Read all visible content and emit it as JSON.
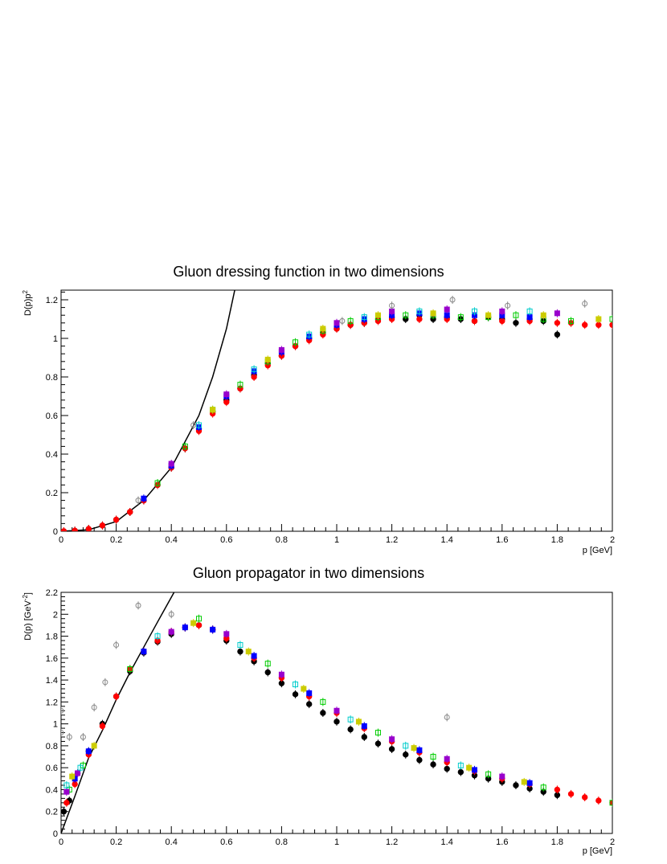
{
  "chart_data": [
    {
      "type": "scatter",
      "title": "Gluon dressing function in two dimensions",
      "xlabel": "p [GeV]",
      "ylabel_main": "D(p)p",
      "ylabel_sup": "2",
      "xlim": [
        0,
        2
      ],
      "ylim": [
        0,
        1.25
      ],
      "xticks": [
        {
          "v": 0,
          "t": "0"
        },
        {
          "v": 0.2,
          "t": "0.2"
        },
        {
          "v": 0.4,
          "t": "0.4"
        },
        {
          "v": 0.6,
          "t": "0.6"
        },
        {
          "v": 0.8,
          "t": "0.8"
        },
        {
          "v": 1,
          "t": "1"
        },
        {
          "v": 1.2,
          "t": "1.2"
        },
        {
          "v": 1.4,
          "t": "1.4"
        },
        {
          "v": 1.6,
          "t": "1.6"
        },
        {
          "v": 1.8,
          "t": "1.8"
        },
        {
          "v": 2,
          "t": "2"
        }
      ],
      "yticks": [
        {
          "v": 0,
          "t": "0"
        },
        {
          "v": 0.2,
          "t": "0.2"
        },
        {
          "v": 0.4,
          "t": "0.4"
        },
        {
          "v": 0.6,
          "t": "0.6"
        },
        {
          "v": 0.8,
          "t": "0.8"
        },
        {
          "v": 1,
          "t": "1"
        },
        {
          "v": 1.2,
          "t": "1.2"
        }
      ],
      "grid": false,
      "legend": "none",
      "curve": {
        "x": [
          0,
          0.1,
          0.2,
          0.3,
          0.4,
          0.5,
          0.55,
          0.6,
          0.63
        ],
        "y": [
          0,
          0.008,
          0.05,
          0.16,
          0.33,
          0.6,
          0.8,
          1.05,
          1.25
        ]
      },
      "series": [
        {
          "color": "#000000",
          "x": [
            0.01,
            0.05,
            0.1,
            0.15,
            0.2,
            0.25,
            0.3,
            0.35,
            0.4,
            0.45,
            0.5,
            0.55,
            0.6,
            0.65,
            0.7,
            0.75,
            0.8,
            0.85,
            0.9,
            0.95,
            1.0,
            1.05,
            1.1,
            1.15,
            1.2,
            1.25,
            1.3,
            1.35,
            1.4,
            1.45,
            1.5,
            1.55,
            1.6,
            1.65,
            1.7,
            1.75,
            1.8
          ],
          "y": [
            0.0,
            0.003,
            0.012,
            0.03,
            0.06,
            0.1,
            0.16,
            0.24,
            0.33,
            0.43,
            0.53,
            0.62,
            0.68,
            0.74,
            0.81,
            0.87,
            0.91,
            0.96,
            1.0,
            1.03,
            1.05,
            1.07,
            1.08,
            1.1,
            1.11,
            1.1,
            1.12,
            1.1,
            1.11,
            1.1,
            1.09,
            1.11,
            1.1,
            1.08,
            1.1,
            1.09,
            1.02
          ]
        },
        {
          "color": "#ff0000",
          "x": [
            0.01,
            0.05,
            0.1,
            0.15,
            0.2,
            0.25,
            0.3,
            0.35,
            0.4,
            0.45,
            0.5,
            0.55,
            0.6,
            0.65,
            0.7,
            0.75,
            0.8,
            0.85,
            0.9,
            0.95,
            1.0,
            1.05,
            1.1,
            1.15,
            1.2,
            1.3,
            1.4,
            1.5,
            1.6,
            1.7,
            1.8,
            1.85,
            1.9,
            1.95,
            2.0
          ],
          "y": [
            0.0,
            0.003,
            0.012,
            0.03,
            0.06,
            0.1,
            0.16,
            0.24,
            0.33,
            0.43,
            0.52,
            0.61,
            0.67,
            0.74,
            0.8,
            0.86,
            0.91,
            0.96,
            0.99,
            1.02,
            1.05,
            1.07,
            1.08,
            1.09,
            1.1,
            1.1,
            1.1,
            1.09,
            1.09,
            1.09,
            1.08,
            1.08,
            1.07,
            1.07,
            1.07
          ]
        },
        {
          "color": "#0000ff",
          "x": [
            0.3,
            0.4,
            0.5,
            0.6,
            0.7,
            0.8,
            0.9,
            1.0,
            1.1,
            1.2,
            1.3,
            1.4,
            1.5,
            1.6,
            1.7
          ],
          "y": [
            0.17,
            0.34,
            0.54,
            0.7,
            0.83,
            0.93,
            1.01,
            1.07,
            1.1,
            1.12,
            1.13,
            1.12,
            1.12,
            1.12,
            1.11
          ]
        },
        {
          "color": "#00cc00",
          "x": [
            0.35,
            0.45,
            0.55,
            0.65,
            0.75,
            0.85,
            0.95,
            1.05,
            1.15,
            1.25,
            1.35,
            1.45,
            1.55,
            1.65,
            1.75,
            1.85,
            2.0
          ],
          "y": [
            0.25,
            0.44,
            0.63,
            0.76,
            0.88,
            0.98,
            1.04,
            1.09,
            1.11,
            1.12,
            1.12,
            1.11,
            1.11,
            1.12,
            1.1,
            1.09,
            1.1
          ]
        },
        {
          "color": "#9900cc",
          "x": [
            0.4,
            0.6,
            0.8,
            1.0,
            1.2,
            1.4,
            1.6,
            1.8
          ],
          "y": [
            0.35,
            0.71,
            0.94,
            1.08,
            1.14,
            1.15,
            1.14,
            1.13
          ]
        },
        {
          "color": "#00cccc",
          "x": [
            0.5,
            0.7,
            0.9,
            1.1,
            1.3,
            1.5,
            1.7
          ],
          "y": [
            0.55,
            0.84,
            1.02,
            1.11,
            1.14,
            1.14,
            1.14
          ]
        },
        {
          "color": "#cccc00",
          "x": [
            0.55,
            0.75,
            0.95,
            1.15,
            1.35,
            1.55,
            1.75,
            1.95
          ],
          "y": [
            0.63,
            0.89,
            1.05,
            1.12,
            1.13,
            1.12,
            1.12,
            1.1
          ]
        },
        {
          "color": "#888888",
          "x": [
            0.28,
            0.48,
            1.02,
            1.2,
            1.42,
            1.62,
            1.9
          ],
          "y": [
            0.16,
            0.55,
            1.09,
            1.17,
            1.2,
            1.17,
            1.18
          ]
        }
      ]
    },
    {
      "type": "scatter",
      "title": "Gluon propagator in two dimensions",
      "xlabel": "p [GeV]",
      "ylabel_main": "D(p) [GeV",
      "ylabel_sup": "-2",
      "ylabel_end": "]",
      "xlim": [
        0,
        2
      ],
      "ylim": [
        0,
        2.2
      ],
      "xticks": [
        {
          "v": 0,
          "t": "0"
        },
        {
          "v": 0.2,
          "t": "0.2"
        },
        {
          "v": 0.4,
          "t": "0.4"
        },
        {
          "v": 0.6,
          "t": "0.6"
        },
        {
          "v": 0.8,
          "t": "0.8"
        },
        {
          "v": 1,
          "t": "1"
        },
        {
          "v": 1.2,
          "t": "1.2"
        },
        {
          "v": 1.4,
          "t": "1.4"
        },
        {
          "v": 1.6,
          "t": "1.6"
        },
        {
          "v": 1.8,
          "t": "1.8"
        },
        {
          "v": 2,
          "t": "2"
        }
      ],
      "yticks": [
        {
          "v": 0,
          "t": "0"
        },
        {
          "v": 0.2,
          "t": "0.2"
        },
        {
          "v": 0.4,
          "t": "0.4"
        },
        {
          "v": 0.6,
          "t": "0.6"
        },
        {
          "v": 0.8,
          "t": "0.8"
        },
        {
          "v": 1,
          "t": "1"
        },
        {
          "v": 1.2,
          "t": "1.2"
        },
        {
          "v": 1.4,
          "t": "1.4"
        },
        {
          "v": 1.6,
          "t": "1.6"
        },
        {
          "v": 1.8,
          "t": "1.8"
        },
        {
          "v": 2,
          "t": "2"
        },
        {
          "v": 2.2,
          "t": "2.2"
        }
      ],
      "grid": false,
      "legend": "none",
      "curve": {
        "x": [
          0,
          0.05,
          0.1,
          0.15,
          0.2,
          0.25,
          0.3,
          0.35,
          0.41
        ],
        "y": [
          0,
          0.34,
          0.69,
          0.94,
          1.22,
          1.47,
          1.7,
          1.93,
          2.2
        ]
      },
      "series": [
        {
          "color": "#000000",
          "x": [
            0.01,
            0.03,
            0.06,
            0.1,
            0.15,
            0.2,
            0.25,
            0.3,
            0.35,
            0.4,
            0.45,
            0.5,
            0.55,
            0.6,
            0.65,
            0.7,
            0.75,
            0.8,
            0.85,
            0.9,
            0.95,
            1.0,
            1.05,
            1.1,
            1.15,
            1.2,
            1.25,
            1.3,
            1.35,
            1.4,
            1.45,
            1.5,
            1.55,
            1.6,
            1.65,
            1.7,
            1.75,
            1.8
          ],
          "y": [
            0.2,
            0.3,
            0.55,
            0.75,
            1.0,
            1.25,
            1.48,
            1.65,
            1.75,
            1.82,
            1.88,
            1.9,
            1.86,
            1.76,
            1.66,
            1.57,
            1.47,
            1.37,
            1.27,
            1.18,
            1.1,
            1.02,
            0.95,
            0.88,
            0.82,
            0.77,
            0.72,
            0.67,
            0.63,
            0.59,
            0.56,
            0.53,
            0.5,
            0.47,
            0.44,
            0.41,
            0.38,
            0.35
          ]
        },
        {
          "color": "#ff0000",
          "x": [
            0.02,
            0.05,
            0.1,
            0.15,
            0.2,
            0.25,
            0.3,
            0.35,
            0.4,
            0.45,
            0.5,
            0.55,
            0.6,
            0.7,
            0.8,
            0.9,
            1.0,
            1.1,
            1.2,
            1.3,
            1.4,
            1.5,
            1.6,
            1.7,
            1.8,
            1.85,
            1.9,
            1.95,
            2.0
          ],
          "y": [
            0.28,
            0.45,
            0.72,
            0.98,
            1.25,
            1.5,
            1.66,
            1.76,
            1.84,
            1.88,
            1.9,
            1.86,
            1.78,
            1.6,
            1.42,
            1.25,
            1.1,
            0.96,
            0.84,
            0.74,
            0.65,
            0.57,
            0.5,
            0.45,
            0.4,
            0.36,
            0.33,
            0.3,
            0.28
          ]
        },
        {
          "color": "#0000ff",
          "x": [
            0.05,
            0.1,
            0.3,
            0.45,
            0.55,
            0.7,
            0.9,
            1.1,
            1.3,
            1.5,
            1.7
          ],
          "y": [
            0.5,
            0.75,
            1.66,
            1.88,
            1.86,
            1.62,
            1.28,
            0.98,
            0.76,
            0.58,
            0.46
          ]
        },
        {
          "color": "#00cc00",
          "x": [
            0.03,
            0.08,
            0.25,
            0.5,
            0.75,
            0.95,
            1.15,
            1.35,
            1.55,
            1.75,
            2.0
          ],
          "y": [
            0.4,
            0.62,
            1.5,
            1.96,
            1.55,
            1.2,
            0.92,
            0.7,
            0.54,
            0.42,
            0.28
          ]
        },
        {
          "color": "#9900cc",
          "x": [
            0.02,
            0.06,
            0.4,
            0.6,
            0.8,
            1.0,
            1.2,
            1.4,
            1.6
          ],
          "y": [
            0.38,
            0.55,
            1.84,
            1.82,
            1.45,
            1.12,
            0.86,
            0.68,
            0.52
          ]
        },
        {
          "color": "#00cccc",
          "x": [
            0.02,
            0.07,
            0.35,
            0.65,
            0.85,
            1.05,
            1.25,
            1.45
          ],
          "y": [
            0.44,
            0.6,
            1.8,
            1.72,
            1.36,
            1.04,
            0.8,
            0.62
          ]
        },
        {
          "color": "#cccc00",
          "x": [
            0.04,
            0.12,
            0.48,
            0.68,
            0.88,
            1.08,
            1.28,
            1.48,
            1.68
          ],
          "y": [
            0.52,
            0.8,
            1.92,
            1.66,
            1.32,
            1.02,
            0.78,
            0.6,
            0.47
          ]
        },
        {
          "color": "#888888",
          "x": [
            0.0,
            0.0,
            0.03,
            0.08,
            0.12,
            0.16,
            0.2,
            0.28,
            0.4,
            1.4
          ],
          "y": [
            1.12,
            0.92,
            0.88,
            0.88,
            1.15,
            1.38,
            1.72,
            2.08,
            2.0,
            1.06
          ]
        }
      ]
    }
  ]
}
